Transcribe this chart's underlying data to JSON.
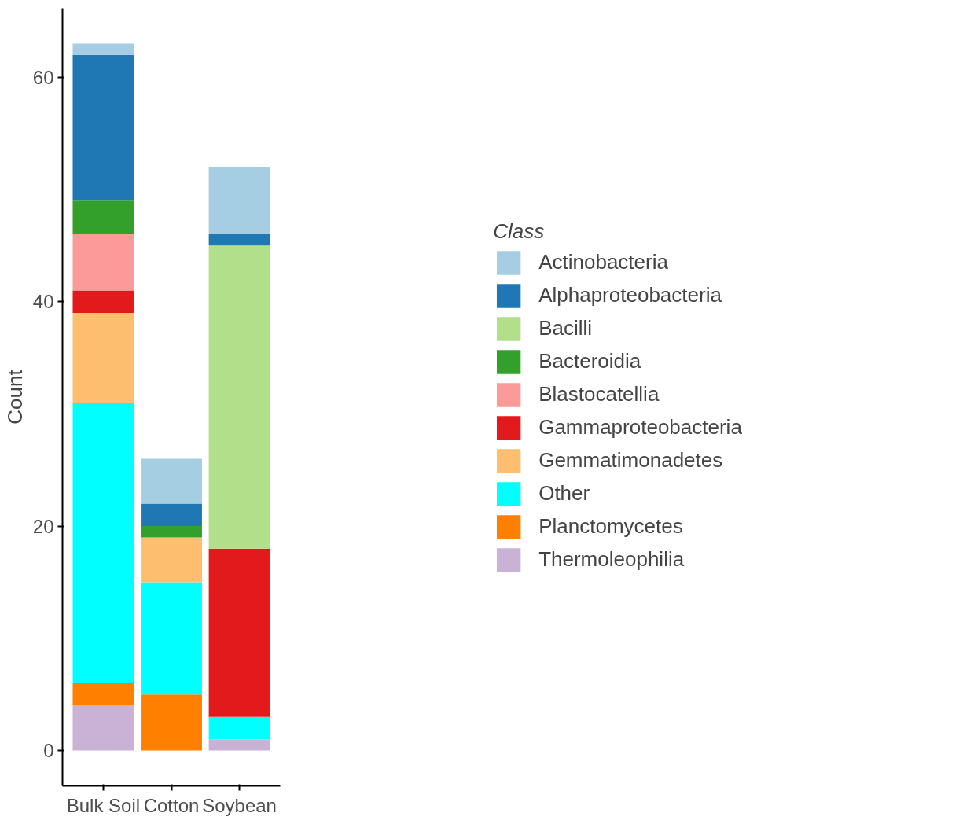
{
  "chart_data": {
    "type": "bar",
    "stacked": true,
    "ylabel": "Count",
    "legend_title": "Class",
    "legend": "right",
    "grid": false,
    "categories": [
      "Bulk Soil",
      "Cotton",
      "Soybean"
    ],
    "ylim": [
      -3.15,
      66.15
    ],
    "yticks": [
      0,
      20,
      40,
      60
    ],
    "series": [
      {
        "name": "Thermoleophilia",
        "color": "#cab2d6",
        "values": [
          4,
          null,
          1
        ]
      },
      {
        "name": "Planctomycetes",
        "color": "#ff7f00",
        "values": [
          2,
          5,
          null
        ]
      },
      {
        "name": "Other",
        "color": "#00ffff",
        "values": [
          25,
          10,
          2
        ]
      },
      {
        "name": "Gemmatimonadetes",
        "color": "#fdbf6f",
        "values": [
          8,
          4,
          null
        ]
      },
      {
        "name": "Gammaproteobacteria",
        "color": "#e31a1c",
        "values": [
          2,
          null,
          15
        ]
      },
      {
        "name": "Blastocatellia",
        "color": "#fb9a99",
        "values": [
          5,
          null,
          null
        ]
      },
      {
        "name": "Bacteroidia",
        "color": "#33a02c",
        "values": [
          3,
          1,
          null
        ]
      },
      {
        "name": "Bacilli",
        "color": "#b2df8a",
        "values": [
          null,
          null,
          27
        ]
      },
      {
        "name": "Alphaproteobacteria",
        "color": "#1f78b4",
        "values": [
          13,
          2,
          1
        ]
      },
      {
        "name": "Actinobacteria",
        "color": "#a6cee3",
        "values": [
          1,
          4,
          6
        ]
      }
    ]
  }
}
